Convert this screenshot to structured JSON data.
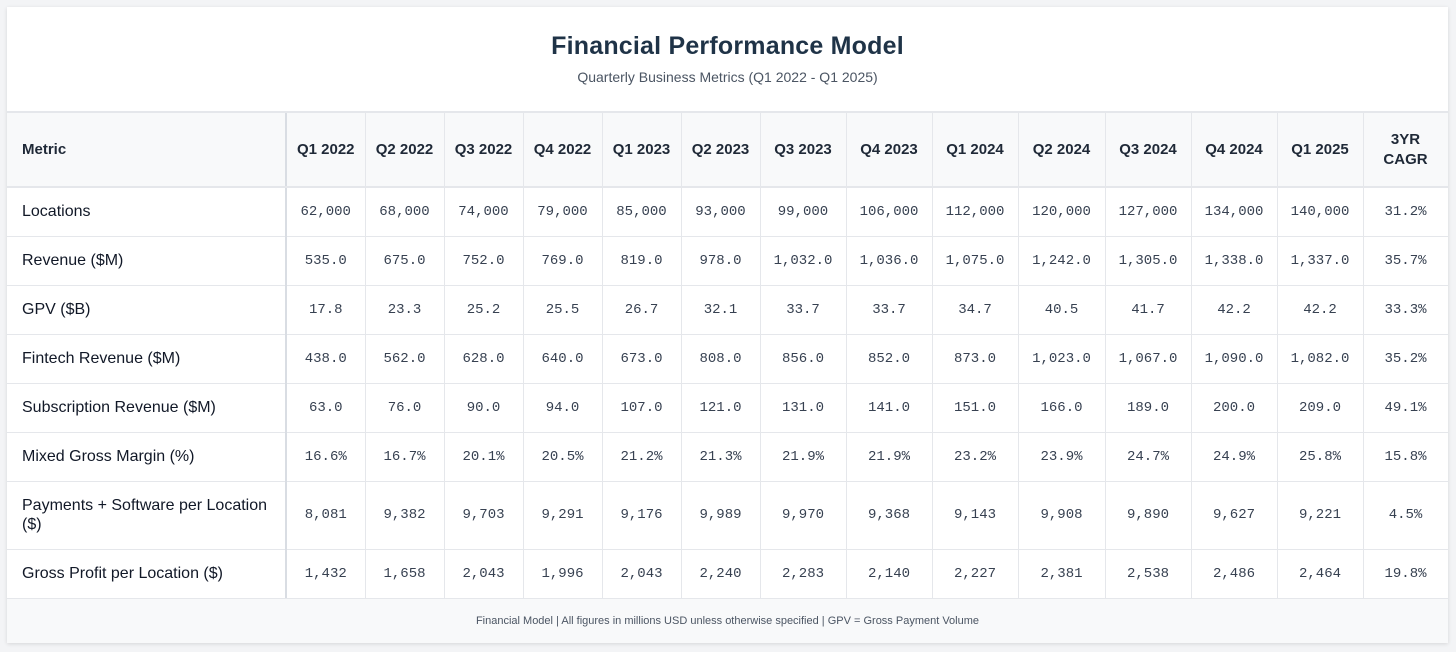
{
  "header": {
    "title": "Financial Performance Model",
    "subtitle": "Quarterly Business Metrics (Q1 2022 - Q1 2025)"
  },
  "footer": {
    "note": "Financial Model | All figures in millions USD unless otherwise specified | GPV = Gross Payment Volume"
  },
  "chart_data": {
    "type": "table",
    "title": "Financial Performance Model",
    "subtitle": "Quarterly Business Metrics (Q1 2022 - Q1 2025)",
    "columns": [
      "Metric",
      "Q1 2022",
      "Q2 2022",
      "Q3 2022",
      "Q4 2022",
      "Q1 2023",
      "Q2 2023",
      "Q3 2023",
      "Q4 2023",
      "Q1 2024",
      "Q2 2024",
      "Q3 2024",
      "Q4 2024",
      "Q1 2025",
      "3YR CAGR"
    ],
    "rows": [
      {
        "label": "Locations",
        "values": [
          "62,000",
          "68,000",
          "74,000",
          "79,000",
          "85,000",
          "93,000",
          "99,000",
          "106,000",
          "112,000",
          "120,000",
          "127,000",
          "134,000",
          "140,000",
          "31.2%"
        ]
      },
      {
        "label": "Revenue ($M)",
        "values": [
          "535.0",
          "675.0",
          "752.0",
          "769.0",
          "819.0",
          "978.0",
          "1,032.0",
          "1,036.0",
          "1,075.0",
          "1,242.0",
          "1,305.0",
          "1,338.0",
          "1,337.0",
          "35.7%"
        ]
      },
      {
        "label": "GPV ($B)",
        "values": [
          "17.8",
          "23.3",
          "25.2",
          "25.5",
          "26.7",
          "32.1",
          "33.7",
          "33.7",
          "34.7",
          "40.5",
          "41.7",
          "42.2",
          "42.2",
          "33.3%"
        ]
      },
      {
        "label": "Fintech Revenue ($M)",
        "values": [
          "438.0",
          "562.0",
          "628.0",
          "640.0",
          "673.0",
          "808.0",
          "856.0",
          "852.0",
          "873.0",
          "1,023.0",
          "1,067.0",
          "1,090.0",
          "1,082.0",
          "35.2%"
        ]
      },
      {
        "label": "Subscription Revenue ($M)",
        "values": [
          "63.0",
          "76.0",
          "90.0",
          "94.0",
          "107.0",
          "121.0",
          "131.0",
          "141.0",
          "151.0",
          "166.0",
          "189.0",
          "200.0",
          "209.0",
          "49.1%"
        ]
      },
      {
        "label": "Mixed Gross Margin (%)",
        "values": [
          "16.6%",
          "16.7%",
          "20.1%",
          "20.5%",
          "21.2%",
          "21.3%",
          "21.9%",
          "21.9%",
          "23.2%",
          "23.9%",
          "24.7%",
          "24.9%",
          "25.8%",
          "15.8%"
        ]
      },
      {
        "label": "Payments + Software per Location ($)",
        "values": [
          "8,081",
          "9,382",
          "9,703",
          "9,291",
          "9,176",
          "9,989",
          "9,970",
          "9,368",
          "9,143",
          "9,908",
          "9,890",
          "9,627",
          "9,221",
          "4.5%"
        ]
      },
      {
        "label": "Gross Profit per Location ($)",
        "values": [
          "1,432",
          "1,658",
          "2,043",
          "1,996",
          "2,043",
          "2,240",
          "2,283",
          "2,140",
          "2,227",
          "2,381",
          "2,538",
          "2,486",
          "2,464",
          "19.8%"
        ]
      }
    ]
  }
}
